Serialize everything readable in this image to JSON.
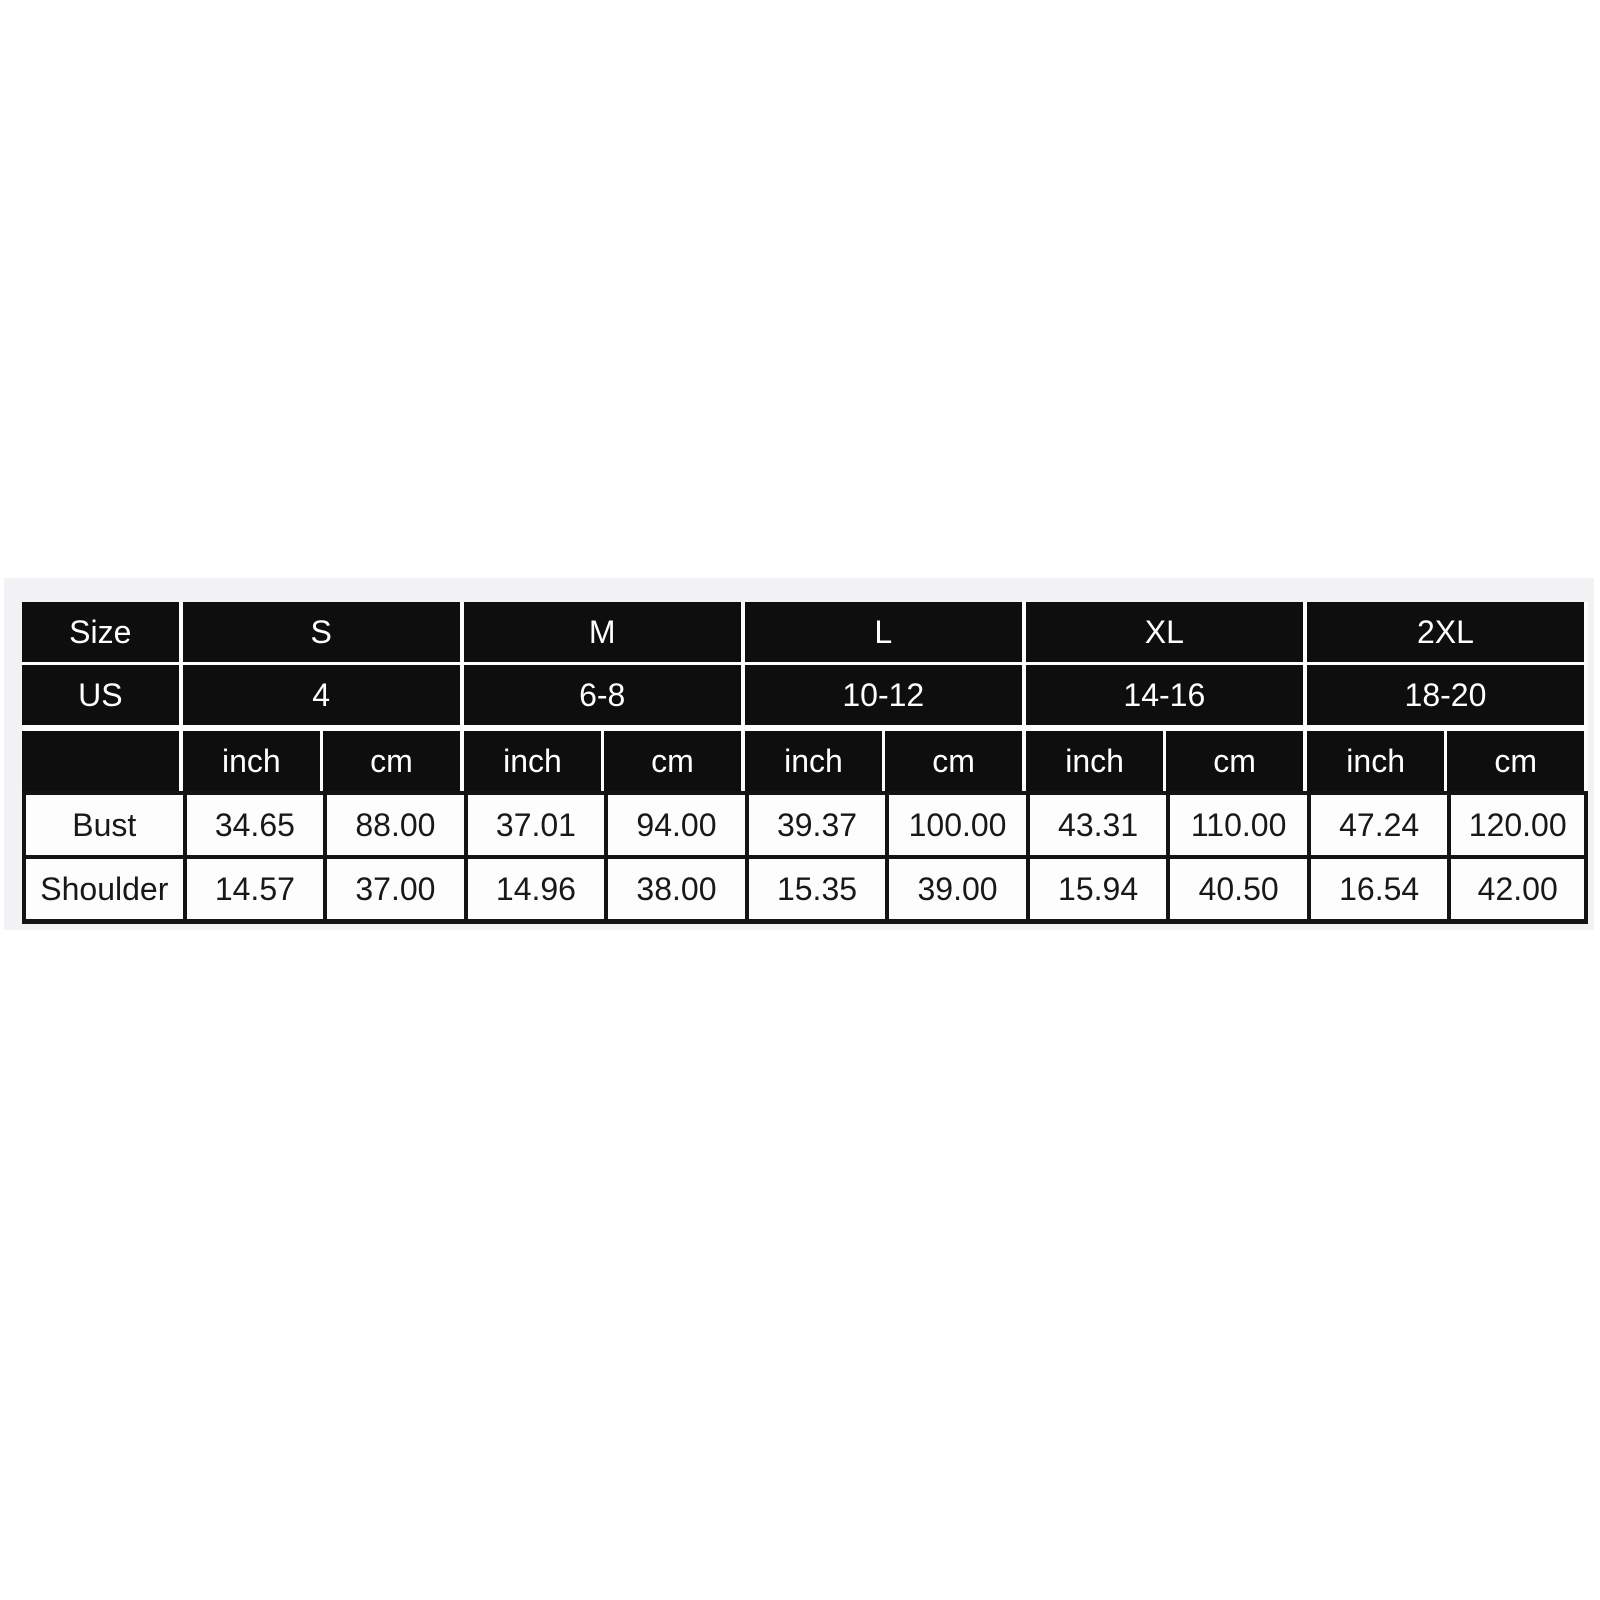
{
  "page": {
    "background": "#ffffff",
    "panel_background": "#f2f2f4"
  },
  "size_chart": {
    "colors": {
      "header_bg": "#0e0e0e",
      "header_text": "#fefefe",
      "cell_bg": "#fdfdfd",
      "cell_text": "#181818",
      "body_border": "#141414",
      "header_divider": "#fdfdfd"
    },
    "header": {
      "size_label": "Size",
      "us_label": "US",
      "sizes": [
        "S",
        "M",
        "L",
        "XL",
        "2XL"
      ],
      "us_values": [
        "4",
        "6-8",
        "10-12",
        "14-16",
        "18-20"
      ],
      "unit_labels": [
        "inch",
        "cm"
      ]
    },
    "rows": [
      {
        "label": "Bust",
        "values": [
          "34.65",
          "88.00",
          "37.01",
          "94.00",
          "39.37",
          "100.00",
          "43.31",
          "110.00",
          "47.24",
          "120.00"
        ]
      },
      {
        "label": "Shoulder",
        "values": [
          "14.57",
          "37.00",
          "14.96",
          "38.00",
          "15.35",
          "39.00",
          "15.94",
          "40.50",
          "16.54",
          "42.00"
        ]
      }
    ]
  },
  "chart_data": {
    "type": "table",
    "title": "Garment size chart",
    "columns": [
      "Size",
      "S-inch",
      "S-cm",
      "M-inch",
      "M-cm",
      "L-inch",
      "L-cm",
      "XL-inch",
      "XL-cm",
      "2XL-inch",
      "2XL-cm"
    ],
    "header_rows": [
      [
        "Size",
        "S",
        "M",
        "L",
        "XL",
        "2XL"
      ],
      [
        "US",
        "4",
        "6-8",
        "10-12",
        "14-16",
        "18-20"
      ],
      [
        "",
        "inch",
        "cm",
        "inch",
        "cm",
        "inch",
        "cm",
        "inch",
        "cm",
        "inch",
        "cm"
      ]
    ],
    "rows": [
      [
        "Bust",
        34.65,
        88.0,
        37.01,
        94.0,
        39.37,
        100.0,
        43.31,
        110.0,
        47.24,
        120.0
      ],
      [
        "Shoulder",
        14.57,
        37.0,
        14.96,
        38.0,
        15.35,
        39.0,
        15.94,
        40.5,
        16.54,
        42.0
      ]
    ],
    "layout_hints": {
      "grid": "on",
      "header_style": "black-inverse",
      "legend": "none"
    }
  }
}
